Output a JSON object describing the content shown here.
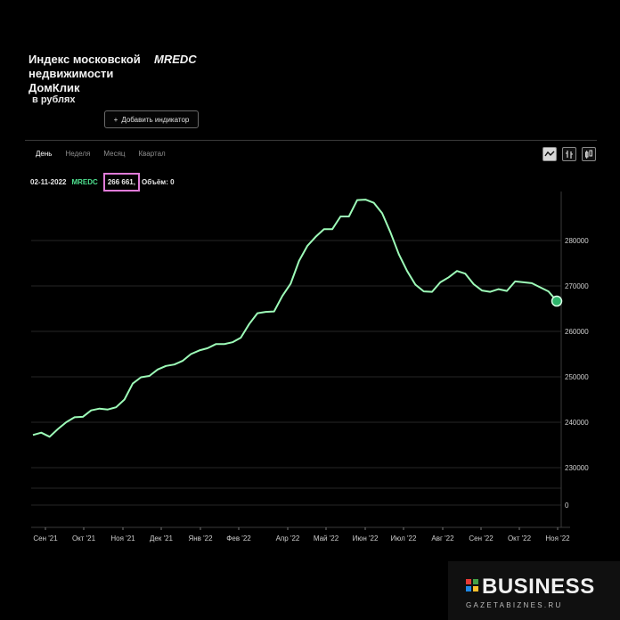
{
  "header": {
    "title_lines": [
      "Индекс московской",
      "недвижимости",
      "ДомКлик"
    ],
    "ticker": "MREDC",
    "currency": "в рублях",
    "add_indicator_label": "Добавить индикатор",
    "plus": "+"
  },
  "tabs": [
    {
      "label": "День",
      "active": true
    },
    {
      "label": "Неделя",
      "active": false
    },
    {
      "label": "Месяц",
      "active": false
    },
    {
      "label": "Квартал",
      "active": false
    }
  ],
  "tools": [
    "line-chart-icon",
    "bar-chart-icon",
    "candlestick-icon"
  ],
  "info": {
    "date": "02-11-2022",
    "ticker": "MREDC",
    "value": "266 661,",
    "volume": "Объём: 0"
  },
  "watermark": {
    "brand": "BUSINESS",
    "site": "GAZETABIZNES.RU",
    "colors": [
      "#e53935",
      "#43a047",
      "#1e88e5",
      "#fbc02d"
    ]
  },
  "chart_data": {
    "type": "line",
    "line_color": "#9dfcb8",
    "marker_color": "#2db36a",
    "y_ticks": [
      0,
      230000,
      240000,
      250000,
      260000,
      270000,
      280000
    ],
    "y_tick_labels": [
      "0",
      "230000",
      "240000",
      "250000",
      "260000",
      "270000",
      "280000"
    ],
    "x_tick_labels": [
      "Сен '21",
      "Окт '21",
      "Ноя '21",
      "Дек '21",
      "Янв '22",
      "Фев '22",
      "Апр '22",
      "Май '22",
      "Июн '22",
      "Июл '22",
      "Авг '22",
      "Сен '22",
      "Окт '22",
      "Ноя '22"
    ],
    "grid": true,
    "legend": "none",
    "values": [
      237200,
      237700,
      236800,
      238500,
      240000,
      241100,
      241200,
      242600,
      243000,
      242800,
      243300,
      245000,
      248500,
      249900,
      250200,
      251600,
      252400,
      252700,
      253500,
      255000,
      255800,
      256300,
      257200,
      257200,
      257600,
      258600,
      261600,
      264000,
      264300,
      264400,
      267800,
      270500,
      275500,
      278800,
      280800,
      282500,
      282500,
      285300,
      285300,
      288900,
      289000,
      288300,
      286000,
      281800,
      277000,
      273300,
      270300,
      268800,
      268700,
      270800,
      271900,
      273300,
      272700,
      270400,
      269000,
      268700,
      269300,
      268900,
      271000,
      270800,
      270600,
      269700,
      268800,
      266661
    ]
  }
}
